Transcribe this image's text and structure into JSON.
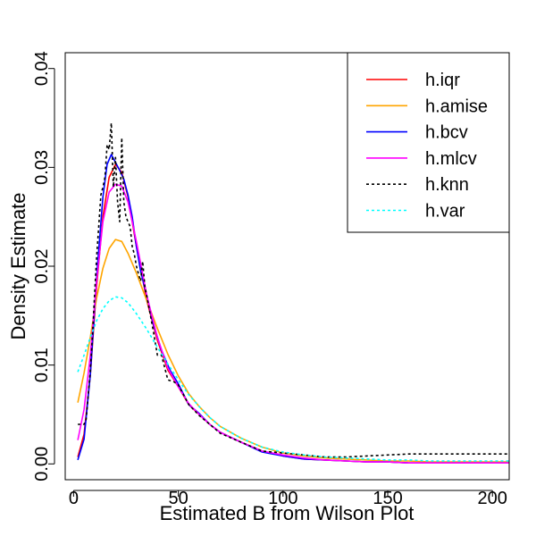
{
  "chart_data": {
    "type": "line",
    "title": "",
    "xlabel": "Estimated B from Wilson Plot",
    "ylabel": "Density Estimate",
    "xlim": [
      -4,
      208
    ],
    "ylim": [
      -0.0016,
      0.0416
    ],
    "xticks": [
      0,
      50,
      100,
      150,
      200
    ],
    "xtick_labels": [
      "0",
      "50",
      "100",
      "150",
      "200"
    ],
    "yticks": [
      0.0,
      0.01,
      0.02,
      0.03,
      0.04
    ],
    "ytick_labels": [
      "0.00",
      "0.01",
      "0.02",
      "0.03",
      "0.04"
    ],
    "grid": false,
    "legend_position": "top-right",
    "series": [
      {
        "name": "h.iqr",
        "color": "#ff0000",
        "dash": "solid",
        "x": [
          2,
          5,
          8,
          11,
          14,
          17,
          20,
          23,
          26,
          30,
          35,
          40,
          45,
          50,
          55,
          60,
          65,
          70,
          80,
          90,
          100,
          110,
          120,
          130,
          140,
          150,
          160,
          170,
          180,
          190,
          200,
          208
        ],
        "y": [
          0.0007,
          0.003,
          0.009,
          0.018,
          0.025,
          0.029,
          0.0303,
          0.0295,
          0.027,
          0.022,
          0.0165,
          0.0125,
          0.0095,
          0.0078,
          0.006,
          0.005,
          0.004,
          0.0032,
          0.0022,
          0.0013,
          0.0008,
          0.0005,
          0.0004,
          0.0003,
          0.0002,
          0.0002,
          0.0001,
          0.0001,
          0.0001,
          0.0001,
          0.0001,
          0.0001
        ]
      },
      {
        "name": "h.amise",
        "color": "#ffa500",
        "dash": "solid",
        "x": [
          2,
          5,
          8,
          11,
          14,
          17,
          20,
          23,
          26,
          30,
          35,
          40,
          45,
          50,
          55,
          60,
          65,
          70,
          80,
          90,
          100,
          110,
          120,
          130,
          140,
          150,
          160,
          170,
          180,
          190,
          200,
          208
        ],
        "y": [
          0.0062,
          0.0092,
          0.0128,
          0.0168,
          0.0198,
          0.0218,
          0.0227,
          0.0225,
          0.0213,
          0.0193,
          0.0165,
          0.0137,
          0.0111,
          0.0089,
          0.0071,
          0.0058,
          0.0047,
          0.0038,
          0.0026,
          0.0017,
          0.0011,
          0.0008,
          0.0006,
          0.0005,
          0.0004,
          0.0003,
          0.0003,
          0.0002,
          0.0002,
          0.0002,
          0.0002,
          0.0002
        ]
      },
      {
        "name": "h.bcv",
        "color": "#0000ff",
        "dash": "solid",
        "x": [
          2,
          5,
          8,
          11,
          14,
          16,
          18,
          20,
          22,
          24,
          26,
          28,
          30,
          32,
          35,
          38,
          42,
          46,
          50,
          55,
          60,
          65,
          70,
          80,
          90,
          100,
          110,
          120,
          130,
          140,
          150,
          160,
          170,
          180,
          190,
          200,
          208
        ],
        "y": [
          0.0004,
          0.0025,
          0.009,
          0.019,
          0.027,
          0.0303,
          0.0313,
          0.0305,
          0.0297,
          0.0288,
          0.0272,
          0.025,
          0.022,
          0.0195,
          0.017,
          0.0142,
          0.0115,
          0.0095,
          0.0081,
          0.006,
          0.0051,
          0.004,
          0.0032,
          0.0022,
          0.0012,
          0.0008,
          0.0005,
          0.0004,
          0.0003,
          0.0002,
          0.0002,
          0.0001,
          0.0001,
          0.0001,
          0.0001,
          0.0001,
          0.0001
        ]
      },
      {
        "name": "h.mlcv",
        "color": "#ff00ff",
        "dash": "solid",
        "x": [
          2,
          5,
          8,
          11,
          14,
          17,
          20,
          23,
          26,
          30,
          35,
          40,
          45,
          50,
          55,
          60,
          65,
          70,
          80,
          90,
          100,
          110,
          120,
          130,
          140,
          150,
          160,
          170,
          180,
          190,
          200,
          208
        ],
        "y": [
          0.0024,
          0.0055,
          0.011,
          0.0185,
          0.0245,
          0.0275,
          0.0283,
          0.0281,
          0.0265,
          0.0225,
          0.017,
          0.0128,
          0.0097,
          0.0078,
          0.0061,
          0.005,
          0.004,
          0.0032,
          0.0022,
          0.0013,
          0.0009,
          0.0006,
          0.0004,
          0.0003,
          0.0002,
          0.0002,
          0.0001,
          0.0001,
          0.0001,
          0.0001,
          0.0001,
          0.0001
        ]
      },
      {
        "name": "h.knn",
        "color": "#000000",
        "dash": "3,3",
        "x": [
          2,
          5,
          6,
          7,
          8,
          9,
          10,
          11,
          12,
          13,
          14,
          15,
          16,
          17,
          18,
          19,
          20,
          21,
          22,
          23,
          24,
          25,
          26,
          27,
          28,
          29,
          30,
          31,
          32,
          33,
          34,
          36,
          38,
          40,
          42,
          45,
          48,
          50,
          55,
          60,
          65,
          70,
          80,
          90,
          100,
          110,
          120,
          130,
          140,
          150,
          160,
          170,
          180,
          190,
          200,
          208
        ],
        "y": [
          0.004,
          0.004,
          0.0045,
          0.007,
          0.0095,
          0.013,
          0.017,
          0.021,
          0.024,
          0.0272,
          0.028,
          0.029,
          0.0323,
          0.0318,
          0.0345,
          0.028,
          0.031,
          0.0265,
          0.0245,
          0.033,
          0.0265,
          0.025,
          0.0245,
          0.024,
          0.022,
          0.0212,
          0.02,
          0.0192,
          0.0185,
          0.0205,
          0.018,
          0.0158,
          0.0135,
          0.011,
          0.011,
          0.0085,
          0.0083,
          0.008,
          0.006,
          0.0049,
          0.004,
          0.0031,
          0.0022,
          0.0013,
          0.0011,
          0.0009,
          0.0007,
          0.0007,
          0.0008,
          0.0009,
          0.001,
          0.001,
          0.001,
          0.001,
          0.001,
          0.001
        ]
      },
      {
        "name": "h.var",
        "color": "#00ffff",
        "dash": "3,3",
        "x": [
          2,
          5,
          8,
          11,
          14,
          17,
          20,
          23,
          26,
          30,
          35,
          40,
          45,
          50,
          55,
          60,
          65,
          70,
          80,
          90,
          100,
          110,
          120,
          130,
          140,
          150,
          160,
          170,
          180,
          190,
          200,
          208
        ],
        "y": [
          0.0093,
          0.011,
          0.0128,
          0.0145,
          0.0157,
          0.0165,
          0.0169,
          0.0168,
          0.0163,
          0.0152,
          0.0136,
          0.0118,
          0.0101,
          0.0085,
          0.007,
          0.0058,
          0.0047,
          0.0038,
          0.0026,
          0.0017,
          0.0012,
          0.0009,
          0.0007,
          0.0006,
          0.0005,
          0.0004,
          0.0004,
          0.0003,
          0.0003,
          0.0003,
          0.0003,
          0.0003
        ]
      }
    ]
  }
}
